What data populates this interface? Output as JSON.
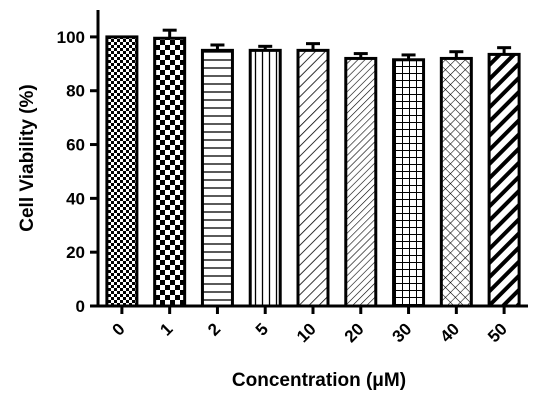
{
  "chart_data": {
    "type": "bar",
    "title": "",
    "xlabel": "Concentration (μM)",
    "ylabel": "Cell Viability (%)",
    "categories": [
      "0",
      "1",
      "2",
      "5",
      "10",
      "20",
      "30",
      "40",
      "50"
    ],
    "values": [
      100,
      99.5,
      95,
      95,
      95,
      92,
      91.5,
      92,
      93.5
    ],
    "errors": [
      0,
      3,
      2,
      1.5,
      2.5,
      1.8,
      1.8,
      2.5,
      2.5
    ],
    "ylim": [
      0,
      110
    ],
    "yticks": [
      0,
      20,
      40,
      60,
      80,
      100
    ],
    "grid": false,
    "legend": "none",
    "bar_fill": "patterned",
    "patterns": [
      "checker-fine",
      "checker-coarse",
      "horizontal-lines",
      "vertical-lines",
      "diagonal-down",
      "diagonal-down-dense",
      "grid",
      "diagonal-crosshatch",
      "diagonal-bold"
    ],
    "colors": {
      "stroke": "#000000",
      "background": "#ffffff"
    }
  }
}
